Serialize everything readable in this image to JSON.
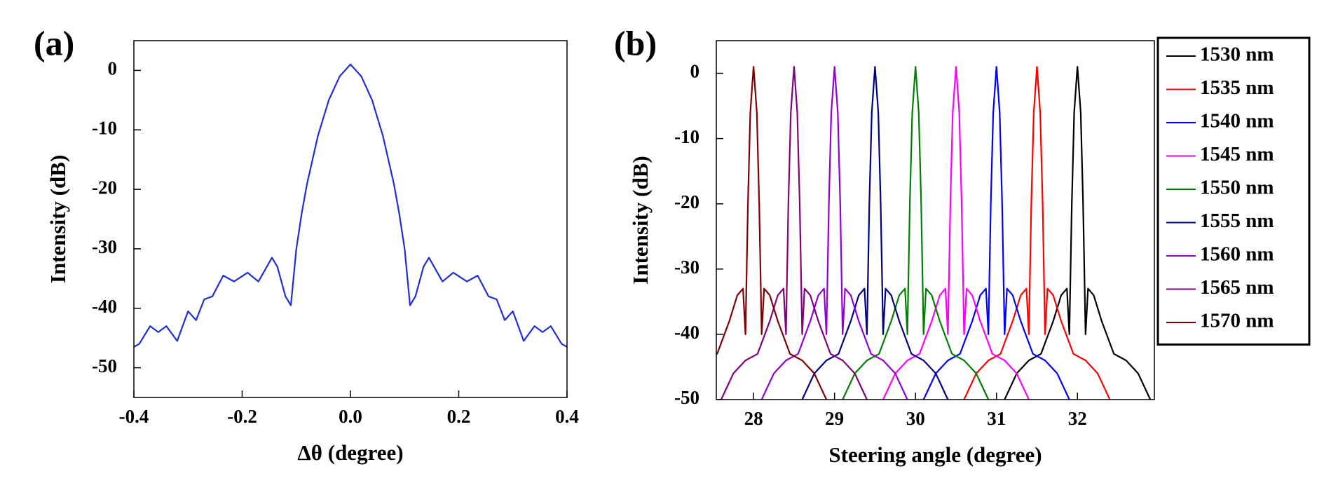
{
  "chart_data": [
    {
      "type": "line",
      "panel_label": "(a)",
      "xlabel": "Δθ (degree)",
      "ylabel": "Intensity (dB)",
      "xlim": [
        -0.4,
        0.4
      ],
      "xticks": [
        -0.4,
        -0.2,
        {
          "value": 0,
          "label": "0.0"
        },
        0.2,
        0.4
      ],
      "ylim": [
        -55,
        5
      ],
      "yticks": [
        0,
        -10,
        -20,
        -30,
        -40,
        -50
      ],
      "series": [
        {
          "color": "#1f2fd6",
          "x": [
            -0.4,
            -0.39,
            -0.37,
            -0.355,
            -0.34,
            -0.32,
            -0.3,
            -0.285,
            -0.27,
            -0.255,
            -0.235,
            -0.215,
            -0.19,
            -0.17,
            -0.145,
            -0.135,
            -0.12,
            -0.11,
            -0.1,
            -0.09,
            -0.08,
            -0.06,
            -0.04,
            -0.02,
            0,
            0.02,
            0.04,
            0.06,
            0.08,
            0.09,
            0.1,
            0.11,
            0.12,
            0.135,
            0.145,
            0.17,
            0.19,
            0.215,
            0.235,
            0.255,
            0.27,
            0.285,
            0.3,
            0.32,
            0.34,
            0.355,
            0.37,
            0.39,
            0.4
          ],
          "values": [
            -46.5,
            -46,
            -43,
            -44,
            -43,
            -45.5,
            -40.5,
            -42,
            -38.5,
            -38,
            -34.5,
            -35.5,
            -34,
            -35.5,
            -31.5,
            -33,
            -38,
            -39.5,
            -30,
            -24,
            -19,
            -11,
            -5,
            -1,
            1,
            -1,
            -5,
            -11,
            -19,
            -24,
            -30,
            -39.5,
            -38,
            -33,
            -31.5,
            -35.5,
            -34,
            -35.5,
            -34.5,
            -38,
            -38.5,
            -42,
            -40.5,
            -45.5,
            -43,
            -44,
            -43,
            -46,
            -46.5
          ]
        }
      ]
    },
    {
      "type": "line",
      "panel_label": "(b)",
      "xlabel": "Steering angle (degree)",
      "ylabel": "Intensity (dB)",
      "xlim": [
        27.54,
        32.95
      ],
      "xticks": [
        28,
        29,
        30,
        31,
        32
      ],
      "ylim": [
        -50,
        5
      ],
      "yticks": [
        0,
        -10,
        -20,
        -30,
        -40,
        -50
      ],
      "legend": "right-outside",
      "series": [
        {
          "name": "1530 nm",
          "color": "#000000",
          "x": [
            31.1,
            31.25,
            31.4,
            31.55,
            31.7,
            31.8,
            31.87,
            31.9,
            31.93,
            31.96,
            32,
            32.04,
            32.07,
            32.1,
            32.13,
            32.2,
            32.3,
            32.45,
            32.6,
            32.75,
            32.9
          ],
          "values": [
            -50,
            -46,
            -44,
            -43,
            -38,
            -34,
            -33,
            -40,
            -20,
            -6,
            1,
            -6,
            -20,
            -40,
            -33,
            -34,
            -38,
            -43,
            -44,
            -46,
            -50
          ]
        },
        {
          "name": "1535 nm",
          "color": "#ff0000",
          "x": [
            30.6,
            30.75,
            30.9,
            31.05,
            31.2,
            31.3,
            31.37,
            31.4,
            31.43,
            31.46,
            31.5,
            31.54,
            31.57,
            31.6,
            31.63,
            31.7,
            31.8,
            31.95,
            32.1,
            32.25,
            32.4
          ],
          "values": [
            -50,
            -46,
            -44,
            -43,
            -38,
            -34,
            -33,
            -40,
            -20,
            -6,
            1,
            -6,
            -20,
            -40,
            -33,
            -34,
            -38,
            -43,
            -44,
            -46,
            -50
          ]
        },
        {
          "name": "1540 nm",
          "color": "#0000ff",
          "x": [
            30.1,
            30.25,
            30.4,
            30.55,
            30.7,
            30.8,
            30.87,
            30.9,
            30.93,
            30.96,
            31,
            31.04,
            31.07,
            31.1,
            31.13,
            31.2,
            31.3,
            31.45,
            31.6,
            31.75,
            31.9
          ],
          "values": [
            -50,
            -46,
            -44,
            -43,
            -38,
            -34,
            -33,
            -40,
            -20,
            -6,
            1,
            -6,
            -20,
            -40,
            -33,
            -34,
            -38,
            -43,
            -44,
            -46,
            -50
          ]
        },
        {
          "name": "1545 nm",
          "color": "#ff00ff",
          "x": [
            29.6,
            29.75,
            29.9,
            30.05,
            30.2,
            30.3,
            30.37,
            30.4,
            30.43,
            30.46,
            30.5,
            30.54,
            30.57,
            30.6,
            30.63,
            30.7,
            30.8,
            30.95,
            31.1,
            31.25,
            31.4
          ],
          "values": [
            -50,
            -46,
            -44,
            -43,
            -38,
            -34,
            -33,
            -40,
            -20,
            -6,
            1,
            -6,
            -20,
            -40,
            -33,
            -34,
            -38,
            -43,
            -44,
            -46,
            -50
          ]
        },
        {
          "name": "1550 nm",
          "color": "#008000",
          "x": [
            29.1,
            29.25,
            29.4,
            29.55,
            29.7,
            29.8,
            29.87,
            29.9,
            29.93,
            29.96,
            30,
            30.04,
            30.07,
            30.1,
            30.13,
            30.2,
            30.3,
            30.45,
            30.6,
            30.75,
            30.9
          ],
          "values": [
            -50,
            -46,
            -44,
            -43,
            -38,
            -34,
            -33,
            -40,
            -20,
            -6,
            1,
            -6,
            -20,
            -40,
            -33,
            -34,
            -38,
            -43,
            -44,
            -46,
            -50
          ]
        },
        {
          "name": "1555 nm",
          "color": "#000080",
          "x": [
            28.6,
            28.75,
            28.9,
            29.05,
            29.2,
            29.3,
            29.37,
            29.4,
            29.43,
            29.46,
            29.5,
            29.54,
            29.57,
            29.6,
            29.63,
            29.7,
            29.8,
            29.95,
            30.1,
            30.25,
            30.4
          ],
          "values": [
            -50,
            -46,
            -44,
            -43,
            -38,
            -34,
            -33,
            -40,
            -20,
            -6,
            1,
            -6,
            -20,
            -40,
            -33,
            -34,
            -38,
            -43,
            -44,
            -46,
            -50
          ]
        },
        {
          "name": "1560 nm",
          "color": "#9400d3",
          "x": [
            28.1,
            28.25,
            28.4,
            28.55,
            28.7,
            28.8,
            28.87,
            28.9,
            28.93,
            28.96,
            29,
            29.04,
            29.07,
            29.1,
            29.13,
            29.2,
            29.3,
            29.45,
            29.6,
            29.75,
            29.9
          ],
          "values": [
            -50,
            -46,
            -44,
            -43,
            -38,
            -34,
            -33,
            -40,
            -20,
            -6,
            1,
            -6,
            -20,
            -40,
            -33,
            -34,
            -38,
            -43,
            -44,
            -46,
            -50
          ]
        },
        {
          "name": "1565 nm",
          "color": "#800080",
          "x": [
            27.6,
            27.75,
            27.9,
            28.05,
            28.2,
            28.3,
            28.37,
            28.4,
            28.43,
            28.46,
            28.5,
            28.54,
            28.57,
            28.6,
            28.63,
            28.7,
            28.8,
            28.95,
            29.1,
            29.25,
            29.4
          ],
          "values": [
            -50,
            -46,
            -44,
            -43,
            -38,
            -34,
            -33,
            -40,
            -20,
            -6,
            1,
            -6,
            -20,
            -40,
            -33,
            -34,
            -38,
            -43,
            -44,
            -46,
            -50
          ]
        },
        {
          "name": "1570 nm",
          "color": "#800000",
          "x": [
            27.1,
            27.25,
            27.4,
            27.55,
            27.7,
            27.8,
            27.87,
            27.9,
            27.93,
            27.96,
            28,
            28.04,
            28.07,
            28.1,
            28.13,
            28.2,
            28.3,
            28.45,
            28.6,
            28.75,
            28.9
          ],
          "values": [
            -50,
            -46,
            -44,
            -43,
            -38,
            -34,
            -33,
            -40,
            -20,
            -6,
            1,
            -6,
            -20,
            -40,
            -33,
            -34,
            -38,
            -43,
            -44,
            -46,
            -50
          ]
        }
      ]
    }
  ]
}
